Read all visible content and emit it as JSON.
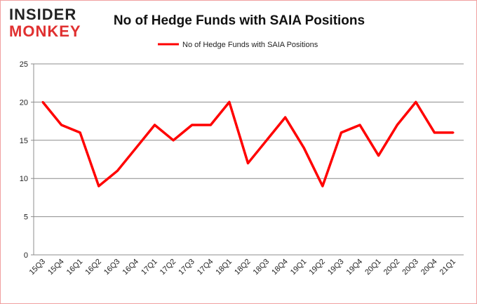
{
  "logo": {
    "line1": "INSIDER",
    "line2": "MONKEY"
  },
  "chart_data": {
    "type": "line",
    "title": "No of Hedge Funds with SAIA Positions",
    "legend": {
      "label": "No of Hedge Funds with SAIA Positions",
      "placement": "top-center"
    },
    "xlabel": "",
    "ylabel": "",
    "categories": [
      "15Q3",
      "15Q4",
      "16Q1",
      "16Q2",
      "16Q3",
      "16Q4",
      "17Q1",
      "17Q2",
      "17Q3",
      "17Q4",
      "18Q1",
      "18Q2",
      "18Q3",
      "18Q4",
      "19Q1",
      "19Q2",
      "19Q3",
      "19Q4",
      "20Q1",
      "20Q2",
      "20Q3",
      "20Q4",
      "21Q1"
    ],
    "series": [
      {
        "name": "No of Hedge Funds with SAIA Positions",
        "color": "#ff0000",
        "values": [
          20,
          17,
          16,
          9,
          11,
          14,
          17,
          15,
          17,
          17,
          20,
          12,
          15,
          18,
          14,
          9,
          16,
          17,
          13,
          17,
          20,
          16,
          16
        ]
      }
    ],
    "ylim": [
      0,
      25
    ],
    "yticks": [
      0,
      5,
      10,
      15,
      20,
      25
    ],
    "grid": true
  }
}
